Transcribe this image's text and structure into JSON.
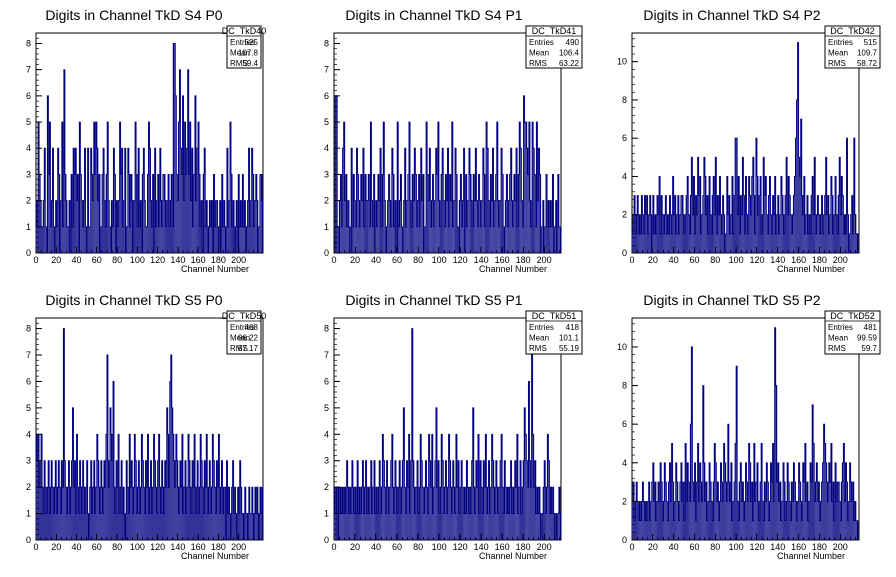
{
  "chart_data": [
    {
      "type": "bar",
      "title": "Digits in Channel TkD S4 P0",
      "xlabel": "Channel Number",
      "ylabel": "",
      "xlim": [
        0,
        224
      ],
      "ylim": [
        0,
        8.4
      ],
      "xticks": [
        0,
        20,
        40,
        60,
        80,
        100,
        120,
        140,
        160,
        180,
        200
      ],
      "yticks": [
        0,
        1,
        2,
        3,
        4,
        5,
        6,
        7,
        8
      ],
      "stats": {
        "name": "DC_TkD40",
        "entries": "525",
        "mean": "107.8",
        "rms": "59.4"
      },
      "values": [
        2,
        1,
        5,
        3,
        2,
        1,
        1,
        2,
        4,
        1,
        0,
        6,
        3,
        5,
        1,
        2,
        4,
        1,
        0,
        2,
        1,
        4,
        3,
        0,
        2,
        5,
        1,
        7,
        3,
        2,
        1,
        1,
        2,
        0,
        3,
        1,
        4,
        3,
        4,
        2,
        3,
        0,
        5,
        3,
        2,
        1,
        2,
        4,
        1,
        0,
        4,
        1,
        1,
        4,
        3,
        2,
        5,
        3,
        5,
        4,
        2,
        3,
        0,
        1,
        3,
        4,
        2,
        1,
        3,
        5,
        2,
        1,
        0,
        2,
        1,
        4,
        3,
        0,
        2,
        1,
        2,
        5,
        3,
        4,
        1,
        2,
        4,
        0,
        1,
        4,
        3,
        1,
        3,
        2,
        0,
        2,
        5,
        3,
        1,
        4,
        1,
        2,
        0,
        3,
        4,
        2,
        1,
        1,
        3,
        5,
        4,
        2,
        1,
        3,
        0,
        4,
        1,
        2,
        3,
        1,
        4,
        2,
        1,
        3,
        3,
        2,
        1,
        2,
        3,
        1,
        2,
        3,
        1,
        8,
        8,
        6,
        3,
        2,
        5,
        7,
        4,
        3,
        6,
        2,
        5,
        3,
        4,
        7,
        3,
        5,
        2,
        4,
        1,
        3,
        6,
        2,
        4,
        5,
        3,
        1,
        2,
        0,
        3,
        4,
        1,
        2,
        0,
        1,
        2,
        1,
        2,
        0,
        3,
        1,
        2,
        2,
        1,
        0,
        2,
        0,
        3,
        1,
        2,
        1,
        0,
        4,
        1,
        2,
        5,
        3,
        1,
        2,
        0,
        1,
        2,
        0,
        3,
        1,
        2,
        1,
        3,
        1,
        2,
        0,
        1,
        2,
        4,
        1,
        2,
        4,
        3,
        1,
        2,
        3,
        2,
        0,
        1,
        3,
        3,
        2
      ]
    },
    {
      "type": "bar",
      "title": "Digits in Channel TkD S4 P1",
      "xlabel": "Channel Number",
      "ylabel": "",
      "xlim": [
        0,
        216
      ],
      "ylim": [
        0,
        8.4
      ],
      "xticks": [
        0,
        20,
        40,
        60,
        80,
        100,
        120,
        140,
        160,
        180,
        200
      ],
      "yticks": [
        0,
        1,
        2,
        3,
        4,
        5,
        6,
        7,
        8
      ],
      "stats": {
        "name": "DC_TkD41",
        "entries": "490",
        "mean": "106.4",
        "rms": "63.22"
      },
      "values": [
        0,
        6,
        6,
        1,
        0,
        2,
        3,
        1,
        4,
        5,
        2,
        3,
        1,
        2,
        1,
        0,
        4,
        1,
        3,
        2,
        1,
        4,
        3,
        2,
        1,
        3,
        2,
        4,
        1,
        3,
        2,
        2,
        3,
        1,
        5,
        2,
        1,
        3,
        0,
        2,
        1,
        3,
        2,
        4,
        1,
        3,
        5,
        2,
        0,
        1,
        2,
        3,
        2,
        1,
        4,
        3,
        1,
        2,
        0,
        5,
        1,
        2,
        3,
        1,
        0,
        2,
        4,
        1,
        2,
        3,
        5,
        2,
        1,
        3,
        2,
        4,
        3,
        1,
        2,
        3,
        1,
        4,
        2,
        3,
        0,
        1,
        5,
        3,
        2,
        4,
        1,
        2,
        3,
        1,
        2,
        4,
        3,
        5,
        2,
        1,
        3,
        4,
        2,
        1,
        3,
        2,
        4,
        1,
        3,
        2,
        5,
        1,
        2,
        4,
        3,
        1,
        0,
        2,
        3,
        1,
        2,
        4,
        0,
        3,
        1,
        2,
        4,
        3,
        2,
        1,
        3,
        2,
        4,
        2,
        1,
        3,
        2,
        1,
        2,
        4,
        3,
        1,
        5,
        4,
        2,
        1,
        3,
        2,
        4,
        1,
        2,
        3,
        5,
        2,
        1,
        2,
        4,
        3,
        0,
        1,
        2,
        3,
        1,
        2,
        3,
        4,
        2,
        1,
        3,
        2,
        4,
        1,
        3,
        5,
        4,
        2,
        1,
        6,
        5,
        5,
        4,
        3,
        5,
        2,
        1,
        5,
        4,
        3,
        1,
        5,
        2,
        4,
        3,
        0,
        1,
        2,
        0,
        1,
        3,
        1,
        2,
        1,
        2,
        1,
        3,
        0,
        1,
        2,
        0,
        3,
        1,
        1
      ]
    },
    {
      "type": "bar",
      "title": "Digits in Channel TkD S4 P2",
      "xlabel": "Channel Number",
      "ylabel": "",
      "xlim": [
        0,
        218
      ],
      "ylim": [
        0,
        11.5
      ],
      "xticks": [
        0,
        20,
        40,
        60,
        80,
        100,
        120,
        140,
        160,
        180,
        200
      ],
      "yticks": [
        0,
        2,
        4,
        6,
        8,
        10
      ],
      "stats": {
        "name": "DC_TkD42",
        "entries": "515",
        "mean": "109.7",
        "rms": "58.72"
      },
      "values": [
        1,
        2,
        3,
        1,
        2,
        3,
        1,
        2,
        1,
        3,
        2,
        1,
        3,
        2,
        3,
        1,
        2,
        3,
        2,
        0,
        3,
        1,
        2,
        1,
        3,
        2,
        4,
        1,
        3,
        2,
        1,
        2,
        3,
        1,
        2,
        1,
        3,
        2,
        1,
        4,
        2,
        3,
        1,
        2,
        3,
        1,
        2,
        3,
        3,
        2,
        1,
        2,
        3,
        4,
        2,
        1,
        3,
        5,
        2,
        4,
        1,
        3,
        2,
        5,
        3,
        4,
        1,
        2,
        3,
        5,
        4,
        2,
        3,
        1,
        4,
        2,
        1,
        3,
        4,
        2,
        5,
        1,
        3,
        2,
        4,
        2,
        1,
        3,
        2,
        0,
        1,
        4,
        2,
        3,
        1,
        2,
        4,
        1,
        3,
        6,
        6,
        2,
        4,
        1,
        3,
        2,
        5,
        3,
        1,
        4,
        2,
        1,
        4,
        3,
        2,
        4,
        5,
        3,
        1,
        6,
        4,
        2,
        3,
        4,
        1,
        2,
        5,
        3,
        4,
        2,
        1,
        3,
        4,
        2,
        1,
        3,
        2,
        4,
        1,
        2,
        3,
        1,
        2,
        4,
        3,
        2,
        1,
        3,
        5,
        2,
        4,
        3,
        2,
        1,
        2,
        3,
        4,
        6,
        8,
        11,
        5,
        4,
        7,
        3,
        2,
        4,
        1,
        2,
        3,
        1,
        2,
        1,
        3,
        4,
        2,
        5,
        1,
        2,
        3,
        2,
        1,
        2,
        3,
        1,
        2,
        3,
        5,
        2,
        3,
        1,
        2,
        4,
        3,
        1,
        2,
        4,
        2,
        1,
        3,
        5,
        2,
        4,
        3,
        1,
        2,
        1,
        6,
        2,
        0,
        1,
        2,
        3,
        1,
        6,
        2,
        1,
        1,
        0
      ]
    },
    {
      "type": "bar",
      "title": "Digits in Channel TkD S5 P0",
      "xlabel": "Channel Number",
      "ylabel": "",
      "xlim": [
        0,
        224
      ],
      "ylim": [
        0,
        8.4
      ],
      "xticks": [
        0,
        20,
        40,
        60,
        80,
        100,
        120,
        140,
        160,
        180,
        200
      ],
      "yticks": [
        0,
        1,
        2,
        3,
        4,
        5,
        6,
        7,
        8
      ],
      "stats": {
        "name": "DC_TkD50",
        "entries": "468",
        "mean": "96.22",
        "rms": "57.17"
      },
      "values": [
        4,
        3,
        4,
        2,
        3,
        4,
        2,
        1,
        3,
        2,
        1,
        2,
        3,
        1,
        2,
        3,
        2,
        1,
        2,
        3,
        1,
        2,
        3,
        2,
        1,
        3,
        2,
        8,
        3,
        2,
        1,
        2,
        3,
        1,
        2,
        3,
        5,
        2,
        3,
        1,
        4,
        2,
        1,
        3,
        2,
        1,
        3,
        2,
        1,
        2,
        3,
        1,
        0,
        2,
        3,
        1,
        2,
        3,
        1,
        2,
        4,
        3,
        2,
        1,
        3,
        2,
        1,
        3,
        2,
        4,
        7,
        3,
        2,
        5,
        4,
        3,
        6,
        2,
        1,
        3,
        2,
        4,
        1,
        2,
        3,
        1,
        2,
        0,
        1,
        3,
        2,
        1,
        4,
        2,
        3,
        1,
        2,
        4,
        3,
        1,
        2,
        3,
        1,
        2,
        4,
        3,
        2,
        1,
        3,
        2,
        4,
        1,
        2,
        3,
        1,
        2,
        4,
        3,
        2,
        1,
        3,
        4,
        2,
        1,
        3,
        2,
        1,
        3,
        2,
        5,
        4,
        2,
        6,
        7,
        5,
        4,
        3,
        2,
        4,
        3,
        2,
        1,
        3,
        2,
        4,
        1,
        2,
        3,
        1,
        2,
        4,
        3,
        2,
        1,
        3,
        2,
        4,
        1,
        2,
        3,
        1,
        2,
        4,
        3,
        2,
        1,
        3,
        2,
        4,
        1,
        2,
        3,
        1,
        2,
        4,
        3,
        2,
        1,
        3,
        2,
        4,
        1,
        2,
        3,
        1,
        2,
        2,
        0,
        3,
        1,
        2,
        1,
        0,
        2,
        3,
        1,
        2,
        1,
        0,
        2,
        1,
        3,
        2,
        1,
        1,
        0,
        2,
        1,
        1,
        0,
        2,
        1,
        1,
        2,
        1,
        0,
        2,
        1,
        2,
        1,
        0,
        2,
        1,
        2
      ]
    },
    {
      "type": "bar",
      "title": "Digits in Channel TkD S5 P1",
      "xlabel": "Channel Number",
      "ylabel": "",
      "xlim": [
        0,
        216
      ],
      "ylim": [
        0,
        8.4
      ],
      "xticks": [
        0,
        20,
        40,
        60,
        80,
        100,
        120,
        140,
        160,
        180,
        200
      ],
      "yticks": [
        0,
        1,
        2,
        3,
        4,
        5,
        6,
        7,
        8
      ],
      "stats": {
        "name": "DC_TkD51",
        "entries": "418",
        "mean": "101.1",
        "rms": "55.19"
      },
      "values": [
        2,
        1,
        2,
        0,
        2,
        1,
        2,
        1,
        2,
        1,
        2,
        1,
        3,
        2,
        1,
        2,
        1,
        3,
        2,
        1,
        2,
        1,
        3,
        1,
        2,
        1,
        2,
        3,
        1,
        2,
        3,
        1,
        2,
        1,
        2,
        3,
        1,
        2,
        3,
        1,
        2,
        1,
        2,
        3,
        1,
        2,
        4,
        3,
        2,
        1,
        3,
        2,
        1,
        2,
        3,
        4,
        2,
        1,
        3,
        2,
        1,
        2,
        3,
        1,
        2,
        3,
        5,
        2,
        1,
        3,
        2,
        4,
        1,
        3,
        8,
        3,
        2,
        1,
        2,
        3,
        1,
        2,
        4,
        3,
        2,
        1,
        2,
        3,
        2,
        1,
        4,
        3,
        2,
        4,
        1,
        2,
        3,
        5,
        2,
        3,
        1,
        2,
        4,
        3,
        1,
        2,
        3,
        1,
        2,
        4,
        3,
        2,
        1,
        3,
        2,
        1,
        4,
        2,
        3,
        1,
        2,
        3,
        2,
        1,
        2,
        1,
        3,
        2,
        1,
        2,
        1,
        3,
        5,
        2,
        1,
        3,
        2,
        4,
        1,
        3,
        2,
        1,
        3,
        2,
        4,
        1,
        2,
        3,
        1,
        2,
        4,
        3,
        2,
        1,
        3,
        2,
        1,
        2,
        3,
        4,
        2,
        1,
        3,
        2,
        1,
        2,
        1,
        2,
        3,
        1,
        2,
        1,
        3,
        2,
        4,
        1,
        2,
        3,
        1,
        2,
        3,
        5,
        4,
        3,
        2,
        6,
        3,
        2,
        7,
        4,
        2,
        3,
        1,
        2,
        1,
        2,
        1,
        0,
        1,
        2,
        3,
        1,
        2,
        4,
        3,
        1,
        2,
        1,
        2,
        1,
        0,
        1,
        0,
        1,
        2,
        1
      ]
    },
    {
      "type": "bar",
      "title": "Digits in Channel TkD S5 P2",
      "xlabel": "Channel Number",
      "ylabel": "",
      "xlim": [
        0,
        218
      ],
      "ylim": [
        0,
        11.5
      ],
      "xticks": [
        0,
        20,
        40,
        60,
        80,
        100,
        120,
        140,
        160,
        180,
        200
      ],
      "yticks": [
        0,
        2,
        4,
        6,
        8,
        10
      ],
      "stats": {
        "name": "DC_TkD52",
        "entries": "481",
        "mean": "99.59",
        "rms": "59.7"
      },
      "values": [
        2,
        3,
        1,
        2,
        3,
        2,
        1,
        2,
        1,
        2,
        3,
        2,
        1,
        2,
        1,
        2,
        3,
        1,
        2,
        3,
        4,
        2,
        3,
        1,
        2,
        3,
        2,
        4,
        3,
        1,
        2,
        4,
        3,
        2,
        1,
        3,
        4,
        2,
        5,
        3,
        1,
        2,
        4,
        3,
        2,
        1,
        3,
        4,
        2,
        3,
        1,
        5,
        2,
        4,
        3,
        2,
        6,
        10,
        3,
        2,
        4,
        1,
        3,
        5,
        2,
        4,
        3,
        2,
        8,
        4,
        2,
        3,
        1,
        2,
        4,
        3,
        2,
        1,
        3,
        5,
        4,
        2,
        3,
        1,
        2,
        4,
        3,
        2,
        5,
        4,
        3,
        2,
        6,
        3,
        2,
        4,
        1,
        2,
        3,
        5,
        9,
        2,
        1,
        3,
        4,
        2,
        3,
        1,
        2,
        4,
        3,
        2,
        5,
        4,
        2,
        3,
        1,
        5,
        2,
        3,
        4,
        2,
        1,
        3,
        5,
        2,
        1,
        3,
        2,
        4,
        3,
        1,
        2,
        4,
        3,
        5,
        2,
        11,
        8,
        3,
        4,
        2,
        3,
        1,
        2,
        4,
        3,
        1,
        2,
        4,
        3,
        2,
        1,
        3,
        2,
        4,
        3,
        2,
        1,
        2,
        4,
        3,
        2,
        1,
        4,
        3,
        5,
        2,
        3,
        1,
        2,
        4,
        3,
        7,
        5,
        2,
        3,
        4,
        2,
        3,
        1,
        2,
        3,
        4,
        6,
        5,
        4,
        3,
        2,
        4,
        3,
        5,
        2,
        3,
        1,
        4,
        2,
        3,
        3,
        2,
        1,
        3,
        4,
        5,
        2,
        4,
        3,
        1,
        2,
        4,
        3,
        2,
        3,
        1,
        2,
        1,
        1,
        0
      ]
    }
  ]
}
